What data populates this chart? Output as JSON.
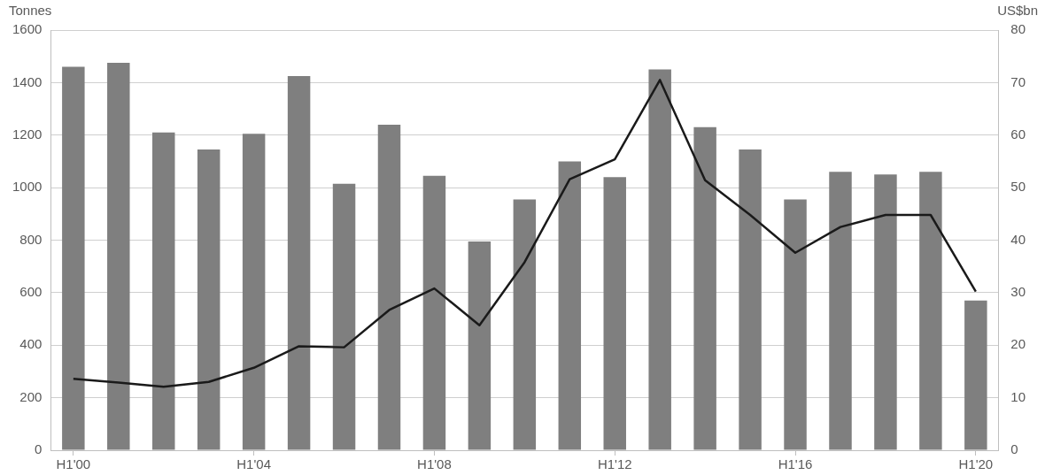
{
  "chart_data": {
    "type": "bar",
    "ylabel": "Tonnes",
    "y2label": "US$bn",
    "categories": [
      "H1'00",
      null,
      null,
      null,
      "H1'04",
      null,
      null,
      null,
      "H1'08",
      null,
      null,
      null,
      "H1'12",
      null,
      null,
      null,
      "H1'16",
      null,
      null,
      null,
      "H1'20"
    ],
    "series": [
      {
        "color": "#7f7f7f",
        "values": [
          1460,
          1475,
          1210,
          1145,
          1205,
          1425,
          1015,
          1240,
          1045,
          795,
          955,
          1100,
          1040,
          1450,
          1230,
          1145,
          955,
          1060,
          1050,
          1060,
          570
        ]
      },
      {
        "type": "line",
        "axis": "y2",
        "color": "#1a1a1a",
        "values": [
          13.6,
          12.9,
          12.1,
          13.0,
          15.7,
          19.8,
          19.6,
          26.7,
          30.8,
          23.8,
          35.8,
          51.6,
          55.4,
          70.5,
          51.4,
          44.8,
          37.6,
          42.5,
          44.8,
          44.8,
          30.2
        ]
      }
    ],
    "ylim": [
      0,
      1600
    ],
    "yticks": [
      0,
      200,
      400,
      600,
      800,
      1000,
      1200,
      1400,
      1600
    ],
    "y2lim": [
      0,
      80
    ],
    "y2ticks": [
      0,
      10,
      20,
      30,
      40,
      50,
      60,
      70,
      80
    ],
    "grid": "y",
    "marker": "none",
    "line_style": "solid"
  }
}
